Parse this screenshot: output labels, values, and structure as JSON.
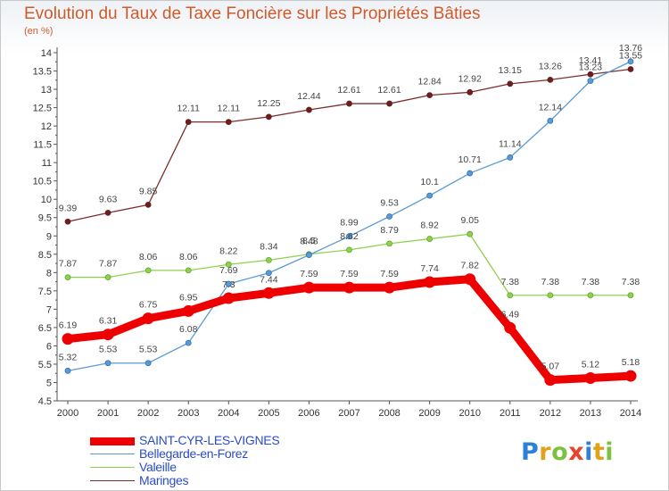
{
  "header": {
    "title": "Evolution du Taux de Taxe Foncière sur les Propriétés Bâties",
    "unit": "(en %)"
  },
  "logo": {
    "letters": [
      "P",
      "r",
      "o",
      "x",
      "i",
      "t",
      "i"
    ]
  },
  "chart_data": {
    "type": "line",
    "title": "Evolution du Taux de Taxe Foncière sur les Propriétés Bâties",
    "ylabel": "(en %)",
    "xlabel": "",
    "categories": [
      "2000",
      "2001",
      "2002",
      "2003",
      "2004",
      "2005",
      "2006",
      "2007",
      "2008",
      "2009",
      "2010",
      "2011",
      "2012",
      "2013",
      "2014"
    ],
    "ylim": [
      4.5,
      14
    ],
    "yticks": [
      "4.5",
      "5",
      "5.5",
      "6",
      "6.5",
      "7",
      "7.5",
      "8",
      "8.5",
      "9",
      "9.5",
      "10",
      "10.5",
      "11",
      "11.5",
      "12",
      "12.5",
      "13",
      "13.5",
      "14"
    ],
    "grid": false,
    "legend_position": "bottom-left",
    "series": [
      {
        "name": "SAINT-CYR-LES-VIGNES",
        "color": "#ee0000",
        "values": [
          6.19,
          6.31,
          6.75,
          6.95,
          7.3,
          7.44,
          7.59,
          7.59,
          7.59,
          7.74,
          7.82,
          6.49,
          5.07,
          5.12,
          5.18
        ],
        "labels": [
          "6.19",
          "6.31",
          "6.75",
          "6.95",
          "7.3",
          "7.44",
          "7.59",
          "7.59",
          "7.59",
          "7.74",
          "7.82",
          "6.49",
          "5.07",
          "5.12",
          "5.18"
        ]
      },
      {
        "name": "Bellegarde-en-Forez",
        "color": "#5b9bd5",
        "values": [
          5.32,
          5.53,
          5.53,
          6.08,
          7.69,
          7.99,
          8.48,
          8.99,
          9.53,
          10.1,
          10.71,
          11.14,
          12.14,
          13.23,
          13.76
        ],
        "labels": [
          "5.32",
          "5.53",
          "5.53",
          "6.08",
          "7.69",
          "",
          "8.48",
          "8.99",
          "9.53",
          "10.1",
          "10.71",
          "11.14",
          "12.14",
          "13.23",
          "13.76"
        ]
      },
      {
        "name": "Valeille",
        "color": "#8fd14f",
        "values": [
          7.87,
          7.87,
          8.06,
          8.06,
          8.22,
          8.34,
          8.5,
          8.62,
          8.79,
          8.92,
          9.05,
          7.38,
          7.38,
          7.38,
          7.38
        ],
        "labels": [
          "7.87",
          "7.87",
          "8.06",
          "8.06",
          "8.22",
          "8.34",
          "8.5",
          "8.62",
          "8.79",
          "8.92",
          "9.05",
          "7.38",
          "7.38",
          "7.38",
          "7.38"
        ]
      },
      {
        "name": "Maringes",
        "color": "#7b2e2e",
        "values": [
          9.39,
          9.63,
          9.85,
          12.11,
          12.11,
          12.25,
          12.44,
          12.61,
          12.61,
          12.84,
          12.92,
          13.15,
          13.26,
          13.41,
          13.55
        ],
        "labels": [
          "9.39",
          "9.63",
          "9.85",
          "12.11",
          "12.11",
          "12.25",
          "12.44",
          "12.61",
          "12.61",
          "12.84",
          "12.92",
          "13.15",
          "13.26",
          "13.41",
          "13.55"
        ]
      }
    ]
  }
}
